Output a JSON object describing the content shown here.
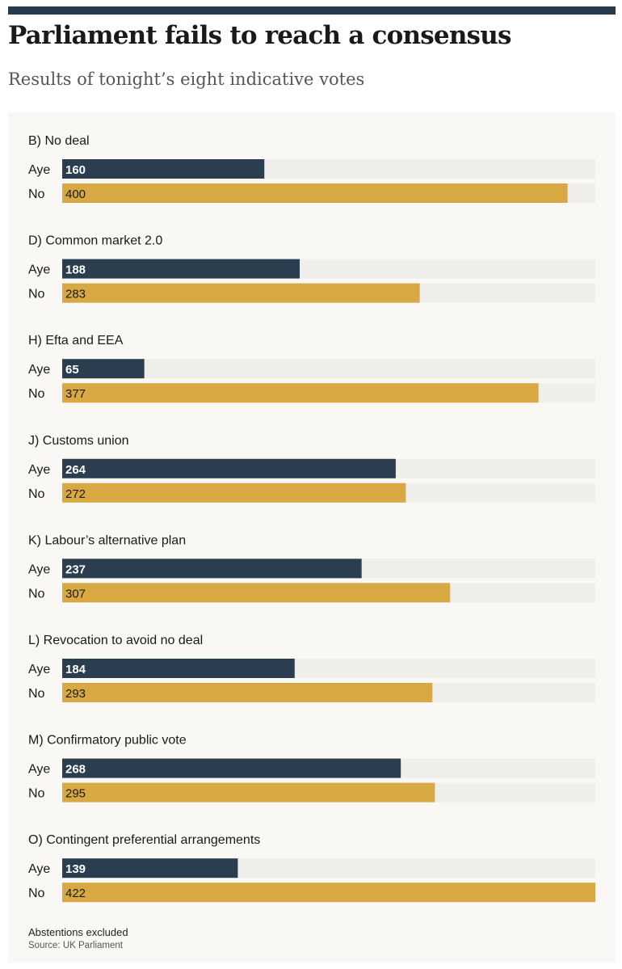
{
  "header": {
    "title": "Parliament fails to reach a consensus",
    "subtitle": "Results of tonight’s eight indicative votes"
  },
  "footer": {
    "note": "Abstentions excluded",
    "source": "Source: UK Parliament"
  },
  "colors": {
    "aye": "#2b3e50",
    "no": "#d8a942",
    "track": "#efeeea",
    "accent_bar": "#26394d",
    "panel": "#f9f8f4"
  },
  "chart_data": {
    "type": "bar",
    "orientation": "horizontal",
    "title": "Parliament fails to reach a consensus",
    "subtitle": "Results of tonight’s eight indicative votes",
    "xlim": [
      0,
      422
    ],
    "grid": false,
    "series_labels": [
      "Aye",
      "No"
    ],
    "groups": [
      {
        "label": "B) No deal",
        "aye": 160,
        "no": 400
      },
      {
        "label": "D) Common market 2.0",
        "aye": 188,
        "no": 283
      },
      {
        "label": "H) Efta and EEA",
        "aye": 65,
        "no": 377
      },
      {
        "label": "J) Customs union",
        "aye": 264,
        "no": 272
      },
      {
        "label": "K) Labour’s alternative plan",
        "aye": 237,
        "no": 307
      },
      {
        "label": "L) Revocation to avoid no deal",
        "aye": 184,
        "no": 293
      },
      {
        "label": "M) Confirmatory public vote",
        "aye": 268,
        "no": 295
      },
      {
        "label": "O) Contingent preferential arrangements",
        "aye": 139,
        "no": 422
      }
    ]
  }
}
